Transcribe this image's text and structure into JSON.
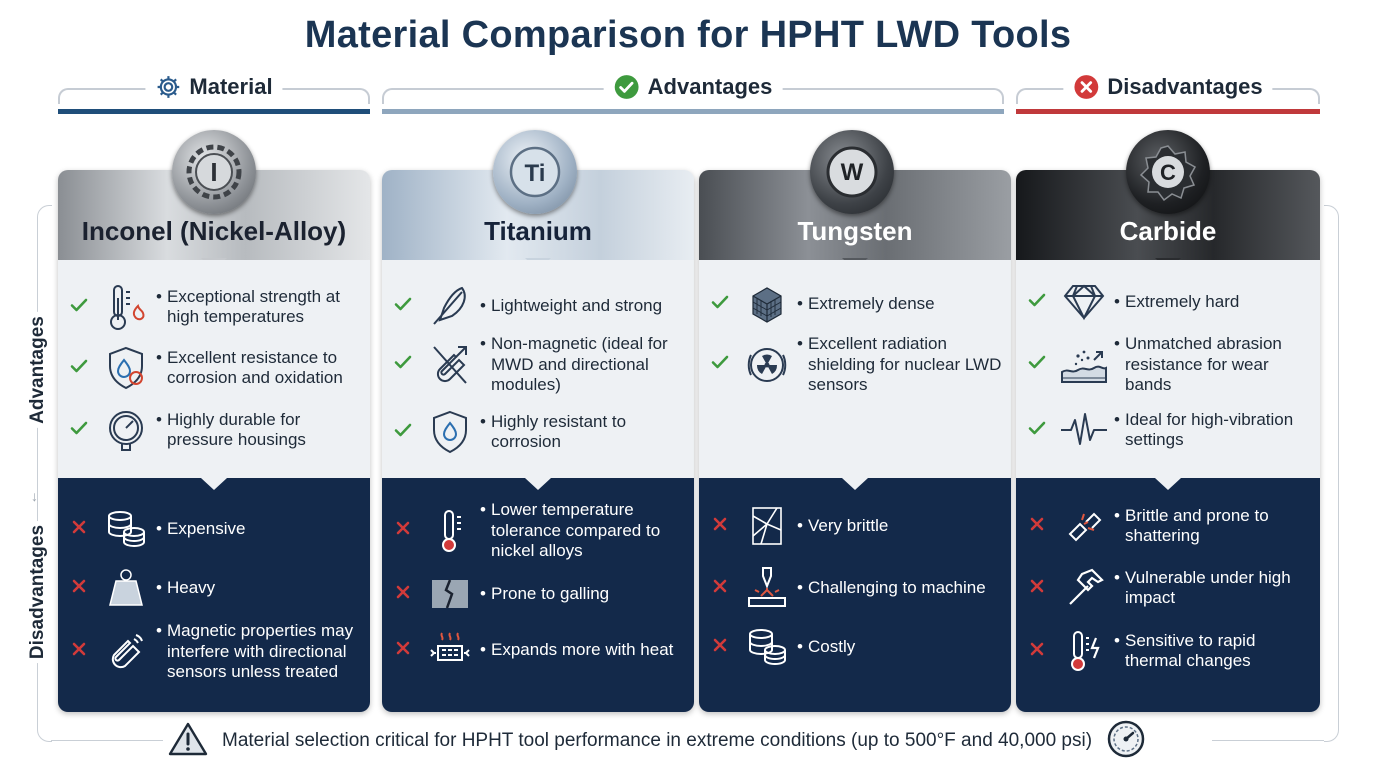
{
  "title": "Material Comparison for HPHT LWD Tools",
  "sections": {
    "material": {
      "label": "Material",
      "icon": "gear-icon",
      "bar_color": "#1f4e7a"
    },
    "advantages": {
      "label": "Advantages",
      "icon": "check-circle-icon",
      "bar_color": "#8ea6bd"
    },
    "disadvantages": {
      "label": "Disadvantages",
      "icon": "x-circle-icon",
      "bar_color": "#c0393b"
    }
  },
  "side_labels": {
    "advantages": "Advantages",
    "disadvantages": "Disadvantages"
  },
  "materials": [
    {
      "name": "Inconel (Nickel-Alloy)",
      "medal_symbol": "I",
      "advantages": [
        {
          "icon": "thermometer-flame-icon",
          "text": "Exceptional strength at high temperatures"
        },
        {
          "icon": "shield-drop-icon",
          "text": "Excellent resistance to corrosion and oxidation"
        },
        {
          "icon": "pressure-gauge-icon",
          "text": "Highly durable for pressure housings"
        }
      ],
      "disadvantages": [
        {
          "icon": "coins-icon",
          "text": "Expensive"
        },
        {
          "icon": "weight-icon",
          "text": "Heavy"
        },
        {
          "icon": "magnet-icon",
          "text": "Magnetic properties may interfere with directional sensors unless treated"
        }
      ]
    },
    {
      "name": "Titanium",
      "medal_symbol": "Ti",
      "advantages": [
        {
          "icon": "feather-icon",
          "text": "Lightweight and strong"
        },
        {
          "icon": "non-magnetic-icon",
          "text": "Non-magnetic (ideal for MWD and directional modules)"
        },
        {
          "icon": "shield-drop-icon",
          "text": "Highly resistant to corrosion"
        }
      ],
      "disadvantages": [
        {
          "icon": "thermometer-icon",
          "text": "Lower temperature tolerance compared to nickel alloys"
        },
        {
          "icon": "galling-icon",
          "text": "Prone to galling"
        },
        {
          "icon": "heat-expansion-icon",
          "text": "Expands more with heat"
        }
      ]
    },
    {
      "name": "Tungsten",
      "medal_symbol": "W",
      "advantages": [
        {
          "icon": "dense-cube-icon",
          "text": "Extremely dense"
        },
        {
          "icon": "radiation-icon",
          "text": "Excellent radiation shielding for nuclear LWD sensors"
        }
      ],
      "disadvantages": [
        {
          "icon": "cracked-glass-icon",
          "text": "Very brittle"
        },
        {
          "icon": "machining-icon",
          "text": "Challenging to machine"
        },
        {
          "icon": "coins-icon",
          "text": "Costly"
        }
      ]
    },
    {
      "name": "Carbide",
      "medal_symbol": "C",
      "advantages": [
        {
          "icon": "diamond-icon",
          "text": "Extremely hard"
        },
        {
          "icon": "abrasion-icon",
          "text": "Unmatched abrasion resistance for wear bands"
        },
        {
          "icon": "vibration-icon",
          "text": "Ideal for high-vibration settings"
        }
      ],
      "disadvantages": [
        {
          "icon": "shatter-icon",
          "text": "Brittle and prone to shattering"
        },
        {
          "icon": "hammer-icon",
          "text": "Vulnerable under high impact"
        },
        {
          "icon": "thermal-shock-icon",
          "text": "Sensitive to rapid thermal changes"
        }
      ]
    }
  ],
  "footer": {
    "text": "Material selection critical for HPHT tool performance in extreme conditions (up to 500°F and 40,000 psi)",
    "left_icon": "warning-icon",
    "right_icon": "gauge-icon"
  },
  "colors": {
    "title": "#1b3553",
    "check": "#3e9a3e",
    "cross": "#d23a3a",
    "disadvantage_panel": "#13294a",
    "advantage_panel": "#eef1f4"
  }
}
